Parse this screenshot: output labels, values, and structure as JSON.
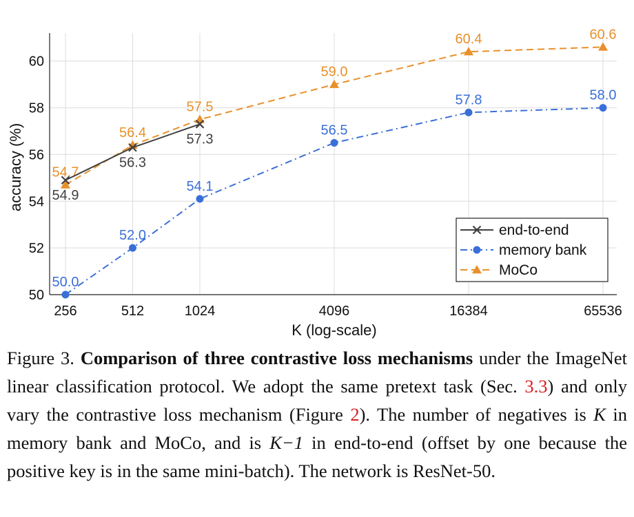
{
  "chart_data": {
    "type": "line",
    "xlabel": "K (log-scale)",
    "ylabel": "accuracy (%)",
    "x_scale": "log2",
    "x": [
      256,
      512,
      1024,
      4096,
      16384,
      65536
    ],
    "x_tick_labels": [
      "256",
      "512",
      "1024",
      "4096",
      "16384",
      "65536"
    ],
    "ylim": [
      50,
      61.2
    ],
    "y_ticks": [
      50,
      52,
      54,
      56,
      58,
      60
    ],
    "y_tick_labels": [
      "50",
      "52",
      "54",
      "56",
      "58",
      "60"
    ],
    "grid": true,
    "legend_position": "bottom-right",
    "series": [
      {
        "name": "end-to-end",
        "color": "#404040",
        "marker": "x",
        "linestyle": "solid",
        "x": [
          256,
          512,
          1024
        ],
        "values": [
          54.9,
          56.3,
          57.3
        ],
        "labels": [
          "54.9",
          "56.3",
          "57.3"
        ],
        "label_pos": "below"
      },
      {
        "name": "memory bank",
        "color": "#3a6fd8",
        "marker": "circle",
        "linestyle": "dashdot",
        "x": [
          256,
          512,
          1024,
          4096,
          16384,
          65536
        ],
        "values": [
          50.0,
          52.0,
          54.1,
          56.5,
          57.8,
          58.0
        ],
        "labels": [
          "50.0",
          "52.0",
          "54.1",
          "56.5",
          "57.8",
          "58.0"
        ],
        "label_pos": "above"
      },
      {
        "name": "MoCo",
        "color": "#e8902a",
        "marker": "triangle",
        "linestyle": "dashed",
        "x": [
          256,
          512,
          1024,
          4096,
          16384,
          65536
        ],
        "values": [
          54.7,
          56.4,
          57.5,
          59.0,
          60.4,
          60.6
        ],
        "labels": [
          "54.7",
          "56.4",
          "57.5",
          "59.0",
          "60.4",
          "60.6"
        ],
        "label_pos": "above"
      }
    ]
  },
  "caption": {
    "figure_label": "Figure 3.",
    "title": "Comparison of three contrastive loss mechanisms",
    "text_1": "under the ImageNet linear classification protocol. We adopt the same pretext task (Sec.",
    "ref_section": "3.3",
    "text_2": ") and only vary the contrastive loss mechanism (Figure",
    "ref_figure": "2",
    "text_3": "). The number of negatives is",
    "var_k": "K",
    "text_4": "in memory bank and MoCo, and is",
    "var_k_minus": "K−1",
    "text_5": "in end-to-end (offset by one because the positive key is in the same mini-batch). The network is ResNet-50."
  }
}
